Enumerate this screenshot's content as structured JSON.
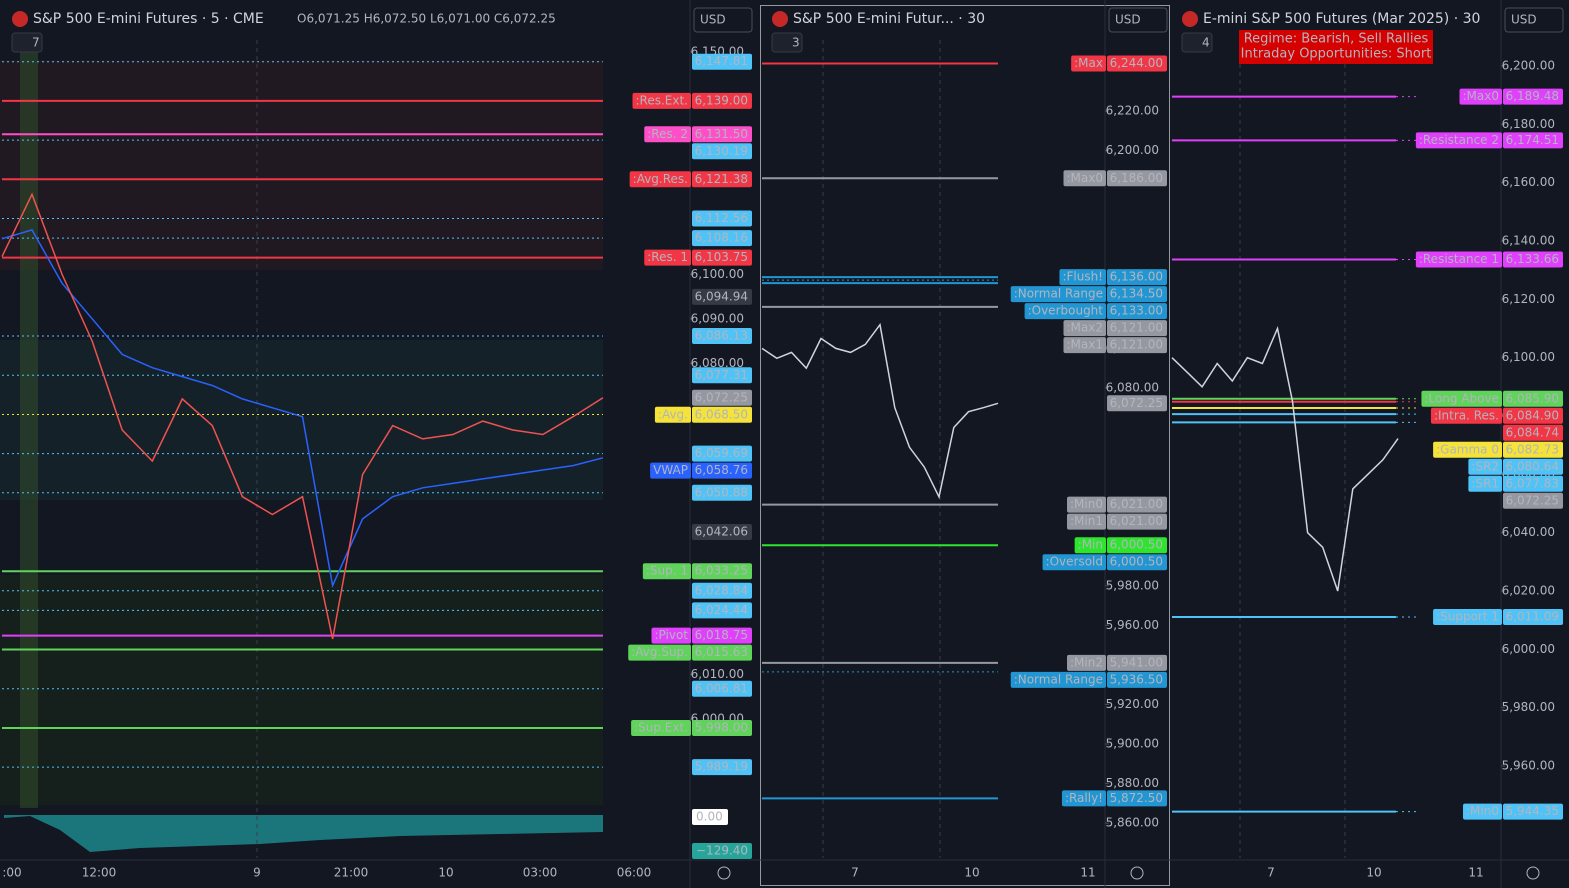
{
  "panels": [
    {
      "title": "S&P 500 E-mini Futures · 5 · CME",
      "ohlc": "O6,071.25 H6,072.50 L6,071.00 C6,072.25",
      "indicators": "7",
      "currency": "USD",
      "ylim": [
        5980,
        6152.7
      ],
      "yticks": [
        {
          "value": 6150,
          "label": "6,150.00"
        },
        {
          "value": 6100,
          "label": "6,100.00"
        },
        {
          "value": 6090,
          "label": "6,090.00"
        },
        {
          "value": 6080,
          "label": "6,080.00"
        },
        {
          "value": 6010,
          "label": "6,010.00"
        },
        {
          "value": 6000,
          "label": "6,000.00"
        }
      ],
      "levels": [
        {
          "value": 6147.81,
          "label": "6,147.81",
          "color": "#4fc3f7",
          "line": "dotted"
        },
        {
          "name": ":Res.Ext.",
          "value": 6139,
          "label": "6,139.00",
          "color": "#f23645",
          "line": "solid"
        },
        {
          "name": ":Res. 2",
          "value": 6131.5,
          "label": "6,131.50",
          "color": "#ff4fc8",
          "line": "solid"
        },
        {
          "value": 6130.19,
          "label": "6,130.19",
          "color": "#4fc3f7",
          "line": "dotted"
        },
        {
          "name": ":Avg.Res.",
          "value": 6121.38,
          "label": "6,121.38",
          "color": "#f23645",
          "line": "solid"
        },
        {
          "value": 6112.56,
          "label": "6,112.56",
          "color": "#4fc3f7",
          "line": "dotted"
        },
        {
          "value": 6108.16,
          "label": "6,108.16",
          "color": "#4fc3f7",
          "line": "dotted"
        },
        {
          "name": ":Res. 1",
          "value": 6103.75,
          "label": "6,103.75",
          "color": "#f23645",
          "line": "solid"
        },
        {
          "value": 6094.94,
          "label": "6,094.94",
          "color": "#363a45",
          "line": "none"
        },
        {
          "value": 6086.13,
          "label": "6,086.13",
          "color": "#4fc3f7",
          "line": "dotted"
        },
        {
          "value": 6077.31,
          "label": "6,077.31",
          "color": "#4fc3f7",
          "line": "dotted"
        },
        {
          "value": 6072.25,
          "label": "6,072.25",
          "color": "#9598a1",
          "line": "none"
        },
        {
          "name": ":Avg.",
          "value": 6068.5,
          "label": "6,068.50",
          "color": "#f5e33a",
          "line": "dotted"
        },
        {
          "value": 6059.69,
          "label": "6,059.69",
          "color": "#4fc3f7",
          "line": "dotted"
        },
        {
          "name": "VWAP",
          "value": 6058.76,
          "label": "6,058.76",
          "color": "#2962ff",
          "line": "none"
        },
        {
          "value": 6050.88,
          "label": "6,050.88",
          "color": "#4fc3f7",
          "line": "dotted"
        },
        {
          "value": 6042.06,
          "label": "6,042.06",
          "color": "#363a45",
          "line": "none"
        },
        {
          "name": ":Sup. 1",
          "value": 6033.25,
          "label": "6,033.25",
          "color": "#5fd35a",
          "line": "solid"
        },
        {
          "value": 6028.84,
          "label": "6,028.84",
          "color": "#4fc3f7",
          "line": "dotted"
        },
        {
          "value": 6024.44,
          "label": "6,024.44",
          "color": "#4fc3f7",
          "line": "dotted"
        },
        {
          "name": ":Pivot",
          "value": 6018.75,
          "label": "6,018.75",
          "color": "#e040fb",
          "line": "solid"
        },
        {
          "name": ":Avg.Sup.",
          "value": 6015.63,
          "label": "6,015.63",
          "color": "#5fd35a",
          "line": "solid"
        },
        {
          "value": 6006.81,
          "label": "6,006.81",
          "color": "#4fc3f7",
          "line": "dotted"
        },
        {
          "name": ":Sup.Ext.",
          "value": 5998,
          "label": "5,998.00",
          "color": "#5fd35a",
          "line": "solid"
        },
        {
          "value": 5989.19,
          "label": "5,989.19",
          "color": "#4fc3f7",
          "line": "dotted"
        }
      ],
      "price": [
        6104,
        6118,
        6100,
        6085,
        6065,
        6058,
        6072,
        6066,
        6050,
        6046,
        6050,
        6018,
        6055,
        6066,
        6063,
        6064,
        6067,
        6065,
        6064,
        6068,
        6072.25
      ],
      "vwap": [
        6108,
        6110,
        6098,
        6090,
        6082,
        6079,
        6077,
        6075,
        6072,
        6070,
        6068,
        6030,
        6045,
        6050,
        6052,
        6053,
        6054,
        6055,
        6056,
        6057,
        6058.76
      ],
      "indicator_labels": [
        {
          "value": 0,
          "label": "0.00"
        },
        {
          "value": -129.4,
          "label": "−129.40"
        }
      ],
      "time_labels": [
        ":00",
        "12:00",
        "9",
        "21:00",
        "10",
        "03:00",
        "06:00"
      ]
    },
    {
      "title": "S&P 500 E-mini Futur... · 30",
      "indicators": "3",
      "currency": "USD",
      "ylim": [
        5843.9,
        6255.9
      ],
      "yticks": [
        {
          "value": 6220,
          "label": "6,220.00"
        },
        {
          "value": 6200,
          "label": "6,200.00"
        },
        {
          "value": 6100,
          "label": "6,100.00"
        },
        {
          "value": 6080,
          "label": "6,080.00"
        },
        {
          "value": 5980,
          "label": "5,980.00"
        },
        {
          "value": 5960,
          "label": "5,960.00"
        },
        {
          "value": 5920,
          "label": "5,920.00"
        },
        {
          "value": 5900,
          "label": "5,900.00"
        },
        {
          "value": 5880,
          "label": "5,880.00"
        },
        {
          "value": 5860,
          "label": "5,860.00"
        }
      ],
      "levels": [
        {
          "name": ":Max",
          "value": 6244,
          "label": "6,244.00",
          "color": "#f23645",
          "line": "solid"
        },
        {
          "name": ":Max0",
          "value": 6186,
          "label": "6,186.00",
          "color": "#9598a1",
          "line": "solid"
        },
        {
          "name": ":Flush!",
          "value": 6136,
          "label": "6,136.00",
          "color": "#2196d3",
          "line": "solid"
        },
        {
          "name": ":Normal Range",
          "value": 6134.5,
          "label": "6,134.50",
          "color": "#2196d3",
          "line": "dotted"
        },
        {
          "name": ":Overbought",
          "value": 6133,
          "label": "6,133.00",
          "color": "#2196d3",
          "line": "solid"
        },
        {
          "name": ":Max2",
          "value": 6121,
          "label": "6,121.00",
          "color": "#9598a1",
          "line": "solid"
        },
        {
          "name": ":Max1",
          "value": 6121,
          "label": "6,121.00",
          "color": "#9598a1",
          "line": "none"
        },
        {
          "value": 6072.25,
          "label": "6,072.25",
          "color": "#9598a1",
          "line": "none"
        },
        {
          "name": ":Min0",
          "value": 6021,
          "label": "6,021.00",
          "color": "#9598a1",
          "line": "solid"
        },
        {
          "name": ":Min1",
          "value": 6021,
          "label": "6,021.00",
          "color": "#9598a1",
          "line": "none"
        },
        {
          "name": ":Min",
          "value": 6000.5,
          "label": "6,000.50",
          "color": "#2ee52e",
          "line": "solid"
        },
        {
          "name": ":Oversold",
          "value": 6000.5,
          "label": "6,000.50",
          "color": "#2196d3",
          "line": "none"
        },
        {
          "name": ":Min2",
          "value": 5941,
          "label": "5,941.00",
          "color": "#9598a1",
          "line": "solid"
        },
        {
          "name": ":Normal Range",
          "value": 5936.5,
          "label": "5,936.50",
          "color": "#2196d3",
          "line": "dotted"
        },
        {
          "name": ":Rally!",
          "value": 5872.5,
          "label": "5,872.50",
          "color": "#2196d3",
          "line": "solid"
        }
      ],
      "price": [
        6100,
        6095,
        6098,
        6090,
        6105,
        6100,
        6098,
        6102,
        6112,
        6070,
        6050,
        6040,
        6025,
        6060,
        6068,
        6070,
        6072.25
      ],
      "time_labels": [
        "7",
        "10",
        "11"
      ]
    },
    {
      "title": "E-mini S&P 500 Futures (Mar 2025) · 30",
      "indicators": "4",
      "currency": "USD",
      "annotation": [
        "Regime: Bearish, Sell Rallies",
        "Intraday Opportunities: Short"
      ],
      "ylim": [
        5929.5,
        6208.9
      ],
      "yticks": [
        {
          "value": 6200,
          "label": "6,200.00"
        },
        {
          "value": 6180,
          "label": "6,180.00"
        },
        {
          "value": 6160,
          "label": "6,160.00"
        },
        {
          "value": 6140,
          "label": "6,140.00"
        },
        {
          "value": 6120,
          "label": "6,120.00"
        },
        {
          "value": 6100,
          "label": "6,100.00"
        },
        {
          "value": 6080,
          "label": "6,080.00"
        },
        {
          "value": 6060,
          "label": "6,060.00"
        },
        {
          "value": 6040,
          "label": "6,040.00"
        },
        {
          "value": 6020,
          "label": "6,020.00"
        },
        {
          "value": 6000,
          "label": "6,000.00"
        },
        {
          "value": 5980,
          "label": "5,980.00"
        },
        {
          "value": 5960,
          "label": "5,960.00"
        }
      ],
      "levels": [
        {
          "name": ":Max0",
          "value": 6189.48,
          "label": "6,189.48",
          "color": "#e040fb",
          "line": "solid"
        },
        {
          "name": ":Resistance 2",
          "value": 6174.51,
          "label": "6,174.51",
          "color": "#e040fb",
          "line": "solid"
        },
        {
          "name": ":Resistance 1",
          "value": 6133.66,
          "label": "6,133.66",
          "color": "#e040fb",
          "line": "solid"
        },
        {
          "name": ":Long Above",
          "value": 6085.9,
          "label": "6,085.90",
          "color": "#5fd35a",
          "line": "solid"
        },
        {
          "name": ":Intra. Res.",
          "value": 6084.9,
          "label": "6,084.90",
          "color": "#f23645",
          "line": "solid"
        },
        {
          "value": 6084.74,
          "label": "6,084.74",
          "color": "#f23645",
          "line": "none"
        },
        {
          "name": ":Gamma 0",
          "value": 6082.73,
          "label": "6,082.73",
          "color": "#f5e33a",
          "line": "solid"
        },
        {
          "name": ":SR2",
          "value": 6080.64,
          "label": "6,080.64",
          "color": "#4fc3f7",
          "line": "solid"
        },
        {
          "name": ":SR1",
          "value": 6077.83,
          "label": "6,077.83",
          "color": "#4fc3f7",
          "line": "solid"
        },
        {
          "value": 6072.25,
          "label": "6,072.25",
          "color": "#9598a1",
          "line": "none"
        },
        {
          "name": ":Support 1",
          "value": 6011.09,
          "label": "6,011.09",
          "color": "#4fc3f7",
          "line": "solid"
        },
        {
          "name": ":Min0",
          "value": 5944.35,
          "label": "5,944.35",
          "color": "#4fc3f7",
          "line": "solid"
        }
      ],
      "price": [
        6100,
        6095,
        6090,
        6098,
        6092,
        6100,
        6098,
        6110,
        6085,
        6040,
        6035,
        6020,
        6055,
        6060,
        6065,
        6072.25
      ],
      "time_labels": [
        "7",
        "10",
        "11"
      ]
    }
  ]
}
